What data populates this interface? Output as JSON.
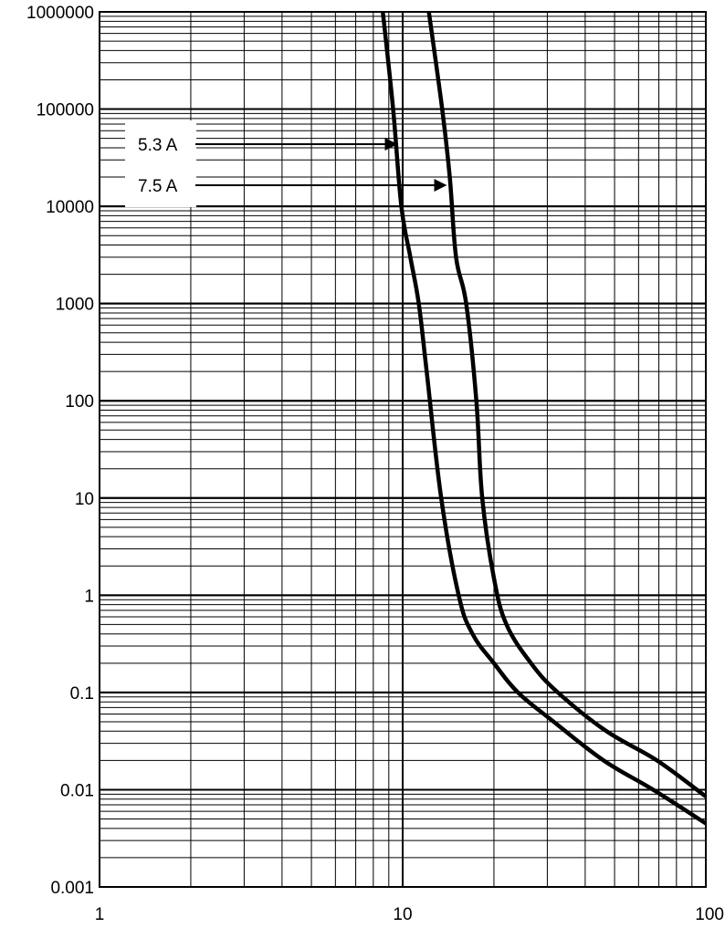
{
  "chart_data": {
    "type": "line",
    "title": "",
    "xlabel": "",
    "ylabel": "",
    "x_scale": "log",
    "y_scale": "log",
    "xlim": [
      1,
      100
    ],
    "ylim": [
      0.001,
      1000000
    ],
    "grid": true,
    "x_ticks": [
      "1",
      "10",
      "100"
    ],
    "y_ticks": [
      "0.001",
      "0.01",
      "0.1",
      "1",
      "10",
      "100",
      "1000",
      "10000",
      "100000",
      "1000000"
    ],
    "series": [
      {
        "name": "5.3 A",
        "x": [
          8.6,
          9.3,
          9.9,
          10.6,
          11.3,
          12.0,
          13.4,
          15.3,
          17.0,
          20.0,
          24.0,
          31.5,
          46.0,
          67.0,
          100.0
        ],
        "y": [
          1000000,
          100000,
          10000,
          3000,
          1000,
          200,
          10,
          1,
          0.4,
          0.2,
          0.1,
          0.05,
          0.02,
          0.01,
          0.0045
        ]
      },
      {
        "name": "7.5 A",
        "x": [
          12.2,
          13.5,
          14.3,
          15.0,
          16.2,
          17.5,
          18.3,
          20.0,
          22.0,
          26.5,
          32.5,
          47.0,
          69.0,
          100.0
        ],
        "y": [
          1000000,
          100000,
          20000,
          3000,
          1000,
          100,
          10,
          1.5,
          0.5,
          0.2,
          0.1,
          0.04,
          0.02,
          0.0085
        ]
      }
    ],
    "annotations": [
      {
        "label": "5.3 A",
        "target_series": 0
      },
      {
        "label": "7.5 A",
        "target_series": 1
      }
    ],
    "colors": {
      "grid": "#000000",
      "curve": "#000000",
      "background": "#ffffff"
    }
  }
}
